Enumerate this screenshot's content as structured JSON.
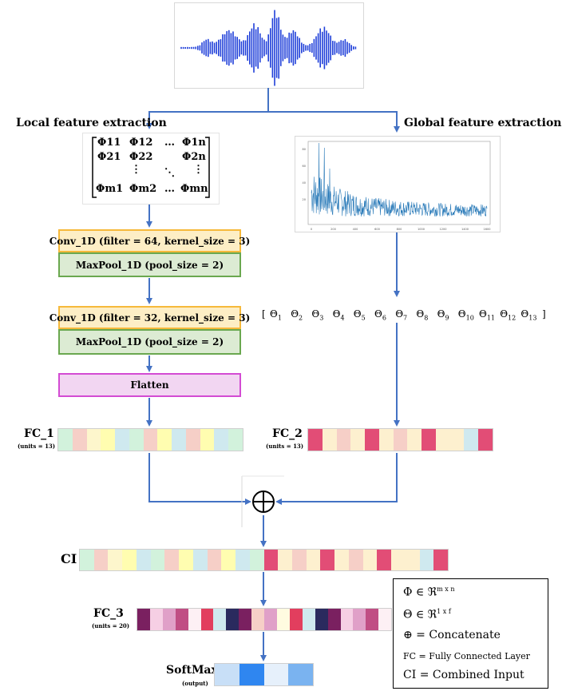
{
  "labels": {
    "local": "Local feature extraction",
    "global": "Global feature extraction"
  },
  "matrix": {
    "r1": [
      "Φ11",
      "Φ12",
      "…",
      "Φ1n"
    ],
    "r2": [
      "Φ21",
      "Φ22",
      "",
      "Φ2n"
    ],
    "r3": [
      "⋮",
      "",
      "⋱",
      "⋮"
    ],
    "r4": [
      "Φm1",
      "Φm2",
      "…",
      "Φmn"
    ]
  },
  "layers": {
    "conv1": "Conv_1D  (filter = 64, kernel_size = 3)",
    "pool1": "MaxPool_1D  (pool_size = 2)",
    "conv2": "Conv_1D  (filter = 32, kernel_size = 3)",
    "pool2": "MaxPool_1D  (pool_size = 2)",
    "flatten": "Flatten"
  },
  "theta": [
    "Θ1",
    "Θ2",
    "Θ3",
    "Θ4",
    "Θ5",
    "Θ6",
    "Θ7",
    "Θ8",
    "Θ9",
    "Θ10",
    "Θ11",
    "Θ12",
    "Θ13"
  ],
  "fc1": {
    "name": "FC_1",
    "units": "(units = 13)",
    "colors": [
      "#d2f2dc",
      "#f6cfc7",
      "#fdf6cc",
      "#fffdb0",
      "#cfe9ef",
      "#d2f2dc",
      "#f6cfc7",
      "#fffdb0",
      "#cfe9ef",
      "#f6cfc7",
      "#fffdb0",
      "#cfe9ef",
      "#d2f2dc"
    ]
  },
  "fc2": {
    "name": "FC_2",
    "units": "(units = 13)",
    "colors": [
      "#e24d76",
      "#fdf0cf",
      "#f6cfc7",
      "#fdf0cf",
      "#e24d76",
      "#fdf0cf",
      "#f6cfc7",
      "#fdf0cf",
      "#e24d76",
      "#fdf0cf",
      "#fdf0cf",
      "#cfe9ef",
      "#e24d76"
    ]
  },
  "ci": {
    "name": "CI",
    "colors": [
      "#d2f2dc",
      "#f6cfc7",
      "#fdf6cc",
      "#fffdb0",
      "#cfe9ef",
      "#d2f2dc",
      "#f6cfc7",
      "#fffdb0",
      "#cfe9ef",
      "#f6cfc7",
      "#fffdb0",
      "#cfe9ef",
      "#d2f2dc",
      "#e24d76",
      "#fdf0cf",
      "#f6cfc7",
      "#fdf0cf",
      "#e24d76",
      "#fdf0cf",
      "#f6cfc7",
      "#fdf0cf",
      "#e24d76",
      "#fdf0cf",
      "#fdf0cf",
      "#cfe9ef",
      "#e24d76"
    ]
  },
  "fc3": {
    "name": "FC_3",
    "units": "(units = 20)",
    "colors": [
      "#7a2060",
      "#f6cfe4",
      "#e0a0c8",
      "#c04e84",
      "#fdf0f4",
      "#e23e5e",
      "#cfe9ef",
      "#2a2a5e",
      "#7a2060",
      "#f6cfc7",
      "#e0a0c8",
      "#fffbe0",
      "#e23e5e",
      "#cfe9ef",
      "#2a2a5e",
      "#7a2060",
      "#f6cfe4",
      "#e0a0c8",
      "#c04e84",
      "#fdf0f4"
    ]
  },
  "softmax": {
    "name": "SoftMax",
    "sub": "(output)",
    "colors": [
      "#c8dff7",
      "#2f86f0",
      "#e6f0fb",
      "#7ab3f0"
    ]
  },
  "legend": {
    "phi": "Φ ∈ ℜ",
    "phi_sup": "m x n",
    "theta": "Θ ∈ ℜ",
    "theta_sup": "1 x f",
    "concat": "⊕ = Concatenate",
    "fc": "FC = Fully Connected Layer",
    "ci": "CI = Combined Input"
  },
  "spectrum_axis": {
    "x_ticks": [
      "0",
      "200",
      "400",
      "600",
      "800",
      "1000",
      "1200",
      "1400",
      "1600"
    ],
    "y_ticks": [
      "20",
      "40",
      "60",
      "80"
    ]
  },
  "colors": {
    "arrow": "#4472c4",
    "wave": "#1f3fd9",
    "spectrum": "#2b7bb9"
  }
}
